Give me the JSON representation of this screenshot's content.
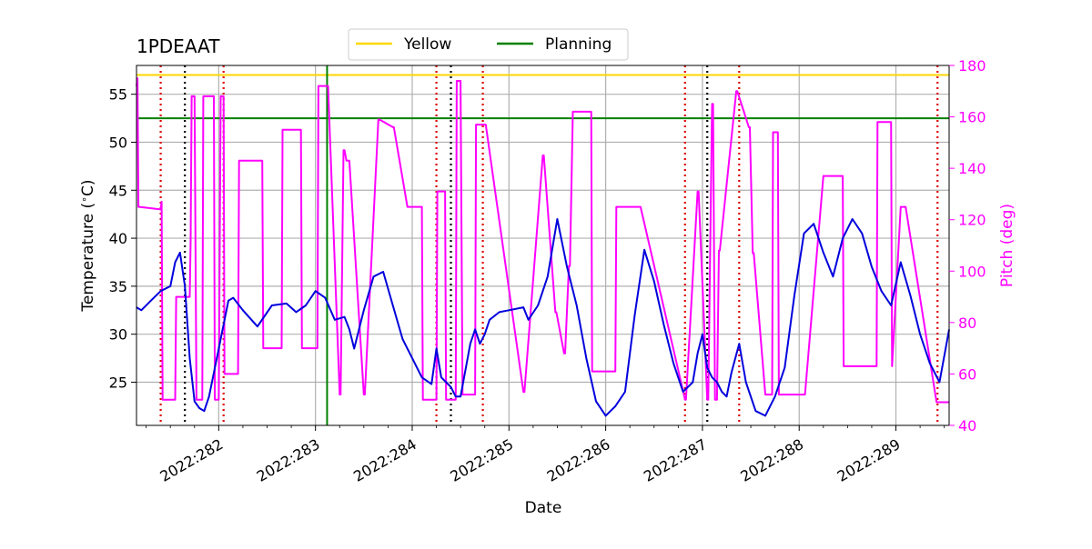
{
  "chart_data": {
    "type": "line",
    "title": "1PDEAAT",
    "xlabel": "Date",
    "ylabel": "Temperature ($^\\circ$C)",
    "ylabel_display": "Temperature (",
    "ylabel_degree": "∘",
    "ylabel_tail": "C)",
    "y2label": "Pitch (deg)",
    "xlim": [
      281.15,
      289.55
    ],
    "ylim": [
      20.5,
      58.0
    ],
    "y2lim": [
      40,
      180
    ],
    "x_ticks": [
      282,
      283,
      284,
      285,
      286,
      287,
      288,
      289
    ],
    "x_tick_labels": [
      "2022:282",
      "2022:283",
      "2022:284",
      "2022:285",
      "2022:286",
      "2022:287",
      "2022:288",
      "2022:289"
    ],
    "y_ticks": [
      25,
      30,
      35,
      40,
      45,
      50,
      55
    ],
    "y_tick_labels": [
      "25",
      "30",
      "35",
      "40",
      "45",
      "50",
      "55"
    ],
    "y2_ticks": [
      40,
      60,
      80,
      100,
      120,
      140,
      160,
      180
    ],
    "y2_tick_labels": [
      "40",
      "60",
      "80",
      "100",
      "120",
      "140",
      "160",
      "180"
    ],
    "grid": true,
    "legend": {
      "placement": "top-center",
      "entries": [
        {
          "label": "Yellow",
          "color": "#FFD700"
        },
        {
          "label": "Planning",
          "color": "#008000"
        }
      ]
    },
    "yellow_limit": 57.0,
    "planning_limit": 52.5,
    "planning_vertical_x": 283.12,
    "red_dotted_x": [
      281.4,
      282.05,
      284.25,
      284.73,
      286.82,
      287.38,
      289.43
    ],
    "black_dotted_x": [
      281.65,
      284.4,
      287.05
    ],
    "colors": {
      "temperature": "#0000DD",
      "pitch": "#FF00FF",
      "yellow": "#FFD700",
      "planning": "#008000",
      "red_marks": "#DD0000",
      "black_marks": "#000000",
      "grid": "#B0B0B0",
      "pitch_axis": "#FF00FF"
    },
    "series": [
      {
        "name": "Temperature",
        "axis": "left",
        "x": [
          281.15,
          281.2,
          281.3,
          281.4,
          281.5,
          281.55,
          281.6,
          281.65,
          281.7,
          281.75,
          281.8,
          281.85,
          281.9,
          282.0,
          282.1,
          282.15,
          282.25,
          282.4,
          282.55,
          282.7,
          282.8,
          282.9,
          283.0,
          283.1,
          283.2,
          283.3,
          283.35,
          283.4,
          283.5,
          283.6,
          283.7,
          283.8,
          283.9,
          284.0,
          284.1,
          284.2,
          284.25,
          284.3,
          284.35,
          284.4,
          284.45,
          284.5,
          284.6,
          284.65,
          284.7,
          284.75,
          284.8,
          284.9,
          285.0,
          285.15,
          285.2,
          285.3,
          285.4,
          285.5,
          285.6,
          285.7,
          285.8,
          285.9,
          286.0,
          286.1,
          286.2,
          286.3,
          286.4,
          286.5,
          286.6,
          286.7,
          286.8,
          286.9,
          286.95,
          287.0,
          287.05,
          287.1,
          287.15,
          287.2,
          287.25,
          287.3,
          287.38,
          287.45,
          287.55,
          287.65,
          287.75,
          287.85,
          287.95,
          288.05,
          288.15,
          288.25,
          288.35,
          288.45,
          288.55,
          288.65,
          288.75,
          288.85,
          288.95,
          289.05,
          289.15,
          289.25,
          289.35,
          289.45,
          289.55
        ],
        "y": [
          32.8,
          32.5,
          33.5,
          34.5,
          35.0,
          37.5,
          38.5,
          35.0,
          27.5,
          23.0,
          22.3,
          22.0,
          23.5,
          28.5,
          33.5,
          33.8,
          32.5,
          30.8,
          33.0,
          33.2,
          32.3,
          33.0,
          34.5,
          33.8,
          31.5,
          31.8,
          30.5,
          28.5,
          32.5,
          36.0,
          36.5,
          33.0,
          29.5,
          27.5,
          25.5,
          24.8,
          28.5,
          25.5,
          25.0,
          24.5,
          23.5,
          23.5,
          29.0,
          30.5,
          29.0,
          30.0,
          31.5,
          32.3,
          32.5,
          32.8,
          31.5,
          33.0,
          36.0,
          42.0,
          37.0,
          33.0,
          27.5,
          23.0,
          21.5,
          22.5,
          24.0,
          32.0,
          38.8,
          35.5,
          31.0,
          27.0,
          24.0,
          25.0,
          28.0,
          30.0,
          26.5,
          25.5,
          25.0,
          24.0,
          23.5,
          26.0,
          29.0,
          25.0,
          22.0,
          21.5,
          23.5,
          26.5,
          34.0,
          40.5,
          41.5,
          38.5,
          36.0,
          40.0,
          42.0,
          40.5,
          37.0,
          34.5,
          33.0,
          37.5,
          34.0,
          30.0,
          27.0,
          25.0,
          30.5
        ]
      },
      {
        "name": "Pitch",
        "axis": "right",
        "x": [
          281.15,
          281.16,
          281.17,
          281.18,
          281.4,
          281.41,
          281.42,
          281.43,
          281.44,
          281.45,
          281.55,
          281.56,
          281.57,
          281.59,
          281.7,
          281.71,
          281.72,
          281.75,
          281.77,
          281.78,
          281.79,
          281.82,
          281.83,
          281.84,
          281.95,
          281.96,
          282.0,
          282.02,
          282.04,
          282.05,
          282.06,
          282.2,
          282.21,
          282.45,
          282.46,
          282.65,
          282.66,
          282.85,
          282.86,
          283.02,
          283.03,
          283.12,
          283.13,
          283.25,
          283.26,
          283.29,
          283.3,
          283.32,
          283.34,
          283.35,
          283.5,
          283.51,
          283.65,
          283.66,
          283.8,
          283.81,
          283.95,
          283.96,
          284.1,
          284.11,
          284.25,
          284.26,
          284.34,
          284.35,
          284.45,
          284.46,
          284.5,
          284.52,
          284.54,
          284.55,
          284.65,
          284.66,
          284.72,
          284.73,
          284.75,
          284.76,
          285.15,
          285.16,
          285.35,
          285.36,
          285.48,
          285.49,
          285.57,
          285.58,
          285.62,
          285.63,
          285.66,
          285.67,
          285.85,
          285.86,
          286.1,
          286.11,
          286.35,
          286.36,
          286.82,
          286.83,
          286.95,
          286.96,
          287.05,
          287.06,
          287.1,
          287.11,
          287.13,
          287.15,
          287.17,
          287.18,
          287.35,
          287.36,
          287.48,
          287.49,
          287.52,
          287.53,
          287.65,
          287.66,
          287.72,
          287.73,
          287.78,
          287.79,
          288.05,
          288.06,
          288.25,
          288.26,
          288.45,
          288.46,
          288.8,
          288.81,
          288.95,
          288.96,
          289.05,
          289.07,
          289.08,
          289.1,
          289.42,
          289.43,
          289.55
        ],
        "y": [
          172,
          175,
          125,
          125,
          124,
          127,
          50,
          50,
          50,
          50,
          50,
          90,
          90,
          90,
          90,
          112,
          168,
          168,
          50,
          50,
          50,
          50,
          50,
          168,
          168,
          50,
          50,
          168,
          168,
          168,
          60,
          60,
          143,
          143,
          70,
          70,
          155,
          155,
          70,
          70,
          172,
          172,
          172,
          52,
          52,
          147,
          147,
          143,
          143,
          143,
          52,
          52,
          159,
          159,
          156,
          156,
          125,
          125,
          125,
          50,
          50,
          131,
          131,
          50,
          50,
          174,
          174,
          52,
          52,
          52,
          52,
          157,
          157,
          157,
          157,
          157,
          53,
          53,
          145,
          145,
          84,
          84,
          68,
          68,
          102,
          102,
          162,
          162,
          162,
          61,
          61,
          125,
          125,
          125,
          50,
          50,
          131,
          131,
          50,
          50,
          165,
          165,
          50,
          50,
          108,
          108,
          170,
          170,
          156,
          156,
          107,
          107,
          52,
          52,
          52,
          154,
          154,
          52,
          52,
          52,
          137,
          137,
          137,
          63,
          63,
          158,
          158,
          63,
          125,
          125,
          125,
          125,
          49,
          49,
          49
        ]
      }
    ]
  }
}
